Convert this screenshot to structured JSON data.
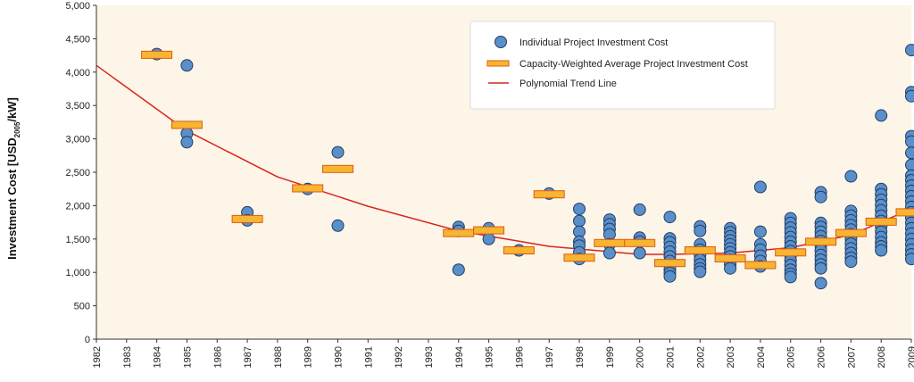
{
  "chart_data": {
    "type": "scatter",
    "ylabel": "Investment Cost [USD",
    "ylabel_sub": "2005",
    "ylabel_suffix": "/kW]",
    "ylim": [
      0,
      5000
    ],
    "yticks": [
      0,
      500,
      1000,
      1500,
      2000,
      2500,
      3000,
      3500,
      4000,
      4500,
      5000
    ],
    "ytick_labels": [
      "0",
      "500",
      "1,000",
      "1,500",
      "2,000",
      "2,500",
      "3,000",
      "3,500",
      "4,000",
      "4,500",
      "5,000"
    ],
    "xlim": [
      1982,
      2009
    ],
    "years": [
      1982,
      1983,
      1984,
      1985,
      1986,
      1987,
      1988,
      1989,
      1990,
      1991,
      1992,
      1993,
      1994,
      1995,
      1996,
      1997,
      1998,
      1999,
      2000,
      2001,
      2002,
      2003,
      2004,
      2005,
      2006,
      2007,
      2008,
      2009
    ],
    "grid": false,
    "legend_position": "top-right",
    "colors": {
      "background": "#fcf5e8",
      "point_fill": "#5b8fc9",
      "point_stroke": "#1f3f66",
      "avg_fill": "#f7b531",
      "avg_stroke": "#e05a10",
      "trend": "#d7261e"
    },
    "series": [
      {
        "name": "Individual Project Investment Cost",
        "kind": "points",
        "points": [
          [
            1984,
            4270
          ],
          [
            1985,
            4100
          ],
          [
            1985,
            3080
          ],
          [
            1985,
            2950
          ],
          [
            1987,
            1900
          ],
          [
            1987,
            1780
          ],
          [
            1989,
            2250
          ],
          [
            1990,
            2800
          ],
          [
            1990,
            1700
          ],
          [
            1994,
            1680
          ],
          [
            1994,
            1620
          ],
          [
            1994,
            1040
          ],
          [
            1995,
            1660
          ],
          [
            1995,
            1500
          ],
          [
            1996,
            1330
          ],
          [
            1997,
            2180
          ],
          [
            1998,
            1950
          ],
          [
            1998,
            1770
          ],
          [
            1998,
            1610
          ],
          [
            1998,
            1460
          ],
          [
            1998,
            1400
          ],
          [
            1998,
            1300
          ],
          [
            1998,
            1200
          ],
          [
            1999,
            1790
          ],
          [
            1999,
            1720
          ],
          [
            1999,
            1650
          ],
          [
            1999,
            1570
          ],
          [
            1999,
            1420
          ],
          [
            1999,
            1290
          ],
          [
            2000,
            1940
          ],
          [
            2000,
            1520
          ],
          [
            2000,
            1460
          ],
          [
            2000,
            1290
          ],
          [
            2001,
            1830
          ],
          [
            2001,
            1510
          ],
          [
            2001,
            1450
          ],
          [
            2001,
            1380
          ],
          [
            2001,
            1310
          ],
          [
            2001,
            1240
          ],
          [
            2001,
            1170
          ],
          [
            2001,
            1100
          ],
          [
            2001,
            1040
          ],
          [
            2001,
            990
          ],
          [
            2001,
            940
          ],
          [
            2002,
            1690
          ],
          [
            2002,
            1620
          ],
          [
            2002,
            1420
          ],
          [
            2002,
            1340
          ],
          [
            2002,
            1260
          ],
          [
            2002,
            1190
          ],
          [
            2002,
            1120
          ],
          [
            2002,
            1060
          ],
          [
            2002,
            1010
          ],
          [
            2003,
            1660
          ],
          [
            2003,
            1600
          ],
          [
            2003,
            1540
          ],
          [
            2003,
            1480
          ],
          [
            2003,
            1420
          ],
          [
            2003,
            1360
          ],
          [
            2003,
            1300
          ],
          [
            2003,
            1240
          ],
          [
            2003,
            1180
          ],
          [
            2003,
            1120
          ],
          [
            2003,
            1060
          ],
          [
            2004,
            2280
          ],
          [
            2004,
            1610
          ],
          [
            2004,
            1420
          ],
          [
            2004,
            1340
          ],
          [
            2004,
            1250
          ],
          [
            2004,
            1170
          ],
          [
            2004,
            1090
          ],
          [
            2005,
            1810
          ],
          [
            2005,
            1740
          ],
          [
            2005,
            1670
          ],
          [
            2005,
            1600
          ],
          [
            2005,
            1530
          ],
          [
            2005,
            1460
          ],
          [
            2005,
            1390
          ],
          [
            2005,
            1320
          ],
          [
            2005,
            1250
          ],
          [
            2005,
            1180
          ],
          [
            2005,
            1110
          ],
          [
            2005,
            1040
          ],
          [
            2005,
            980
          ],
          [
            2005,
            930
          ],
          [
            2006,
            2200
          ],
          [
            2006,
            2130
          ],
          [
            2006,
            1740
          ],
          [
            2006,
            1680
          ],
          [
            2006,
            1610
          ],
          [
            2006,
            1540
          ],
          [
            2006,
            1470
          ],
          [
            2006,
            1400
          ],
          [
            2006,
            1330
          ],
          [
            2006,
            1260
          ],
          [
            2006,
            1190
          ],
          [
            2006,
            1120
          ],
          [
            2006,
            1060
          ],
          [
            2006,
            840
          ],
          [
            2007,
            2440
          ],
          [
            2007,
            1920
          ],
          [
            2007,
            1850
          ],
          [
            2007,
            1780
          ],
          [
            2007,
            1710
          ],
          [
            2007,
            1640
          ],
          [
            2007,
            1570
          ],
          [
            2007,
            1500
          ],
          [
            2007,
            1430
          ],
          [
            2007,
            1360
          ],
          [
            2007,
            1290
          ],
          [
            2007,
            1220
          ],
          [
            2007,
            1160
          ],
          [
            2008,
            3350
          ],
          [
            2008,
            2250
          ],
          [
            2008,
            2170
          ],
          [
            2008,
            2090
          ],
          [
            2008,
            2010
          ],
          [
            2008,
            1930
          ],
          [
            2008,
            1850
          ],
          [
            2008,
            1770
          ],
          [
            2008,
            1690
          ],
          [
            2008,
            1610
          ],
          [
            2008,
            1530
          ],
          [
            2008,
            1450
          ],
          [
            2008,
            1390
          ],
          [
            2008,
            1330
          ],
          [
            2009,
            4330
          ],
          [
            2009,
            3700
          ],
          [
            2009,
            3640
          ],
          [
            2009,
            3040
          ],
          [
            2009,
            2960
          ],
          [
            2009,
            2790
          ],
          [
            2009,
            2610
          ],
          [
            2009,
            2450
          ],
          [
            2009,
            2380
          ],
          [
            2009,
            2300
          ],
          [
            2009,
            2220
          ],
          [
            2009,
            2140
          ],
          [
            2009,
            2060
          ],
          [
            2009,
            1980
          ],
          [
            2009,
            1900
          ],
          [
            2009,
            1820
          ],
          [
            2009,
            1740
          ],
          [
            2009,
            1660
          ],
          [
            2009,
            1580
          ],
          [
            2009,
            1500
          ],
          [
            2009,
            1420
          ],
          [
            2009,
            1340
          ],
          [
            2009,
            1270
          ],
          [
            2009,
            1200
          ]
        ]
      },
      {
        "name": "Capacity-Weighted Average Project Investment Cost",
        "kind": "bars",
        "points": [
          [
            1984,
            4260
          ],
          [
            1985,
            3210
          ],
          [
            1987,
            1800
          ],
          [
            1989,
            2260
          ],
          [
            1990,
            2550
          ],
          [
            1994,
            1590
          ],
          [
            1995,
            1630
          ],
          [
            1996,
            1330
          ],
          [
            1997,
            2170
          ],
          [
            1998,
            1220
          ],
          [
            1999,
            1440
          ],
          [
            2000,
            1440
          ],
          [
            2001,
            1140
          ],
          [
            2002,
            1330
          ],
          [
            2003,
            1210
          ],
          [
            2004,
            1110
          ],
          [
            2005,
            1300
          ],
          [
            2006,
            1460
          ],
          [
            2007,
            1590
          ],
          [
            2008,
            1760
          ],
          [
            2009,
            1900
          ]
        ]
      },
      {
        "name": "Polynomial Trend Line",
        "kind": "line",
        "points": [
          [
            1982,
            4100
          ],
          [
            1985,
            3120
          ],
          [
            1988,
            2430
          ],
          [
            1991,
            1990
          ],
          [
            1994,
            1620
          ],
          [
            1997,
            1390
          ],
          [
            2000,
            1270
          ],
          [
            2001,
            1270
          ],
          [
            2003,
            1290
          ],
          [
            2005,
            1370
          ],
          [
            2007,
            1560
          ],
          [
            2009,
            1950
          ]
        ]
      }
    ]
  }
}
